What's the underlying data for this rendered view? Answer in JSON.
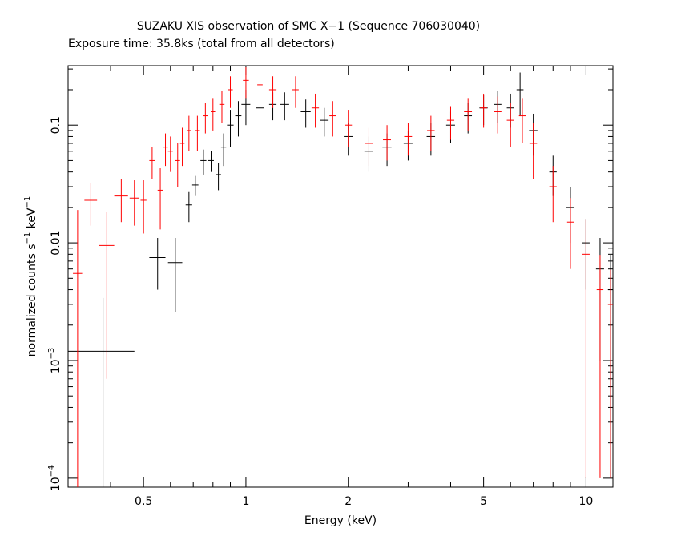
{
  "chart_data": {
    "type": "errorbar",
    "title": "SUZAKU XIS observation of SMC X−1 (Sequence 706030040)",
    "subtitle": "Exposure time: 35.8ks (total from all detectors)",
    "xlabel": "Energy (keV)",
    "ylabel_parts": [
      {
        "text": "normalized counts s"
      },
      {
        "text": "−1",
        "sup": true
      },
      {
        "text": " keV"
      },
      {
        "text": "−1",
        "sup": true
      }
    ],
    "xscale": "log",
    "yscale": "log",
    "xlim": [
      0.3,
      12
    ],
    "ylim": [
      8.4e-05,
      0.32
    ],
    "xticks": [
      0.5,
      1,
      2,
      5,
      10
    ],
    "xminorticks": [
      0.3,
      0.4,
      0.6,
      0.7,
      0.8,
      0.9,
      3,
      4,
      6,
      7,
      8,
      9
    ],
    "yticks": [
      {
        "value": 0.1,
        "label": "0.1"
      },
      {
        "value": 0.01,
        "label": "0.01"
      },
      {
        "value": 0.001,
        "label": "10",
        "sup": "−3"
      },
      {
        "value": 0.0001,
        "label": "10",
        "sup": "−4"
      }
    ],
    "yminorticks": [
      0.0002,
      0.0003,
      0.0004,
      0.0005,
      0.0006,
      0.0007,
      0.0008,
      0.0009,
      0.002,
      0.003,
      0.004,
      0.005,
      0.006,
      0.007,
      0.008,
      0.009,
      0.02,
      0.03,
      0.04,
      0.05,
      0.06,
      0.07,
      0.08,
      0.09,
      0.2,
      0.3
    ],
    "series": [
      {
        "color": "#000000",
        "x": [
          0.38,
          0.55,
          0.62,
          0.68,
          0.71,
          0.75,
          0.79,
          0.83,
          0.86,
          0.9,
          0.95,
          1.0,
          1.1,
          1.2,
          1.3,
          1.5,
          1.7,
          2.0,
          2.3,
          2.6,
          3.0,
          3.5,
          4.0,
          4.5,
          5.0,
          5.5,
          6.0,
          6.4,
          7.0,
          8.0,
          9.0,
          10.0,
          11.0,
          11.8
        ],
        "xerr": [
          0.09,
          0.03,
          0.03,
          0.015,
          0.015,
          0.015,
          0.015,
          0.015,
          0.015,
          0.02,
          0.02,
          0.03,
          0.03,
          0.03,
          0.04,
          0.05,
          0.05,
          0.06,
          0.07,
          0.08,
          0.09,
          0.1,
          0.12,
          0.12,
          0.14,
          0.14,
          0.15,
          0.15,
          0.2,
          0.2,
          0.25,
          0.25,
          0.3,
          0.2
        ],
        "values": [
          0.0012,
          0.0075,
          0.0068,
          0.021,
          0.031,
          0.05,
          0.05,
          0.038,
          0.065,
          0.1,
          0.12,
          0.15,
          0.14,
          0.15,
          0.15,
          0.13,
          0.11,
          0.08,
          0.06,
          0.065,
          0.07,
          0.08,
          0.1,
          0.12,
          0.14,
          0.15,
          0.14,
          0.2,
          0.09,
          0.04,
          0.02,
          0.01,
          0.006,
          0.004
        ],
        "yerr": [
          0.0022,
          0.0035,
          0.0042,
          0.006,
          0.006,
          0.012,
          0.01,
          0.01,
          0.02,
          0.035,
          0.04,
          0.05,
          0.04,
          0.04,
          0.04,
          0.035,
          0.03,
          0.025,
          0.02,
          0.02,
          0.02,
          0.025,
          0.03,
          0.035,
          0.04,
          0.045,
          0.045,
          0.08,
          0.035,
          0.015,
          0.01,
          0.006,
          0.005,
          0.0039
        ]
      },
      {
        "color": "#ff0000",
        "x": [
          0.32,
          0.35,
          0.39,
          0.43,
          0.47,
          0.5,
          0.53,
          0.56,
          0.58,
          0.6,
          0.63,
          0.65,
          0.68,
          0.72,
          0.76,
          0.8,
          0.85,
          0.9,
          1.0,
          1.1,
          1.2,
          1.4,
          1.6,
          1.8,
          2.0,
          2.3,
          2.6,
          3.0,
          3.5,
          4.0,
          4.5,
          5.0,
          5.5,
          6.0,
          6.5,
          7.0,
          8.0,
          9.0,
          10.0,
          11.0,
          11.8
        ],
        "xerr": [
          0.01,
          0.015,
          0.02,
          0.02,
          0.015,
          0.01,
          0.01,
          0.01,
          0.01,
          0.01,
          0.01,
          0.01,
          0.01,
          0.012,
          0.012,
          0.012,
          0.015,
          0.015,
          0.02,
          0.02,
          0.03,
          0.03,
          0.04,
          0.04,
          0.05,
          0.06,
          0.07,
          0.08,
          0.09,
          0.1,
          0.12,
          0.12,
          0.14,
          0.15,
          0.15,
          0.18,
          0.2,
          0.2,
          0.25,
          0.25,
          0.2
        ],
        "values": [
          0.0055,
          0.023,
          0.0095,
          0.025,
          0.024,
          0.023,
          0.05,
          0.028,
          0.065,
          0.06,
          0.05,
          0.07,
          0.09,
          0.09,
          0.12,
          0.13,
          0.15,
          0.2,
          0.24,
          0.22,
          0.2,
          0.2,
          0.14,
          0.12,
          0.1,
          0.07,
          0.075,
          0.08,
          0.09,
          0.11,
          0.13,
          0.14,
          0.13,
          0.11,
          0.12,
          0.07,
          0.03,
          0.015,
          0.008,
          0.004,
          0.003
        ],
        "yerr": [
          0.0135,
          0.009,
          0.0088,
          0.01,
          0.01,
          0.011,
          0.015,
          0.015,
          0.02,
          0.02,
          0.02,
          0.025,
          0.03,
          0.03,
          0.035,
          0.04,
          0.045,
          0.06,
          0.07,
          0.06,
          0.06,
          0.06,
          0.045,
          0.04,
          0.035,
          0.025,
          0.025,
          0.025,
          0.03,
          0.035,
          0.04,
          0.045,
          0.045,
          0.045,
          0.05,
          0.035,
          0.015,
          0.009,
          0.0079,
          0.0039,
          0.0029
        ]
      }
    ]
  }
}
